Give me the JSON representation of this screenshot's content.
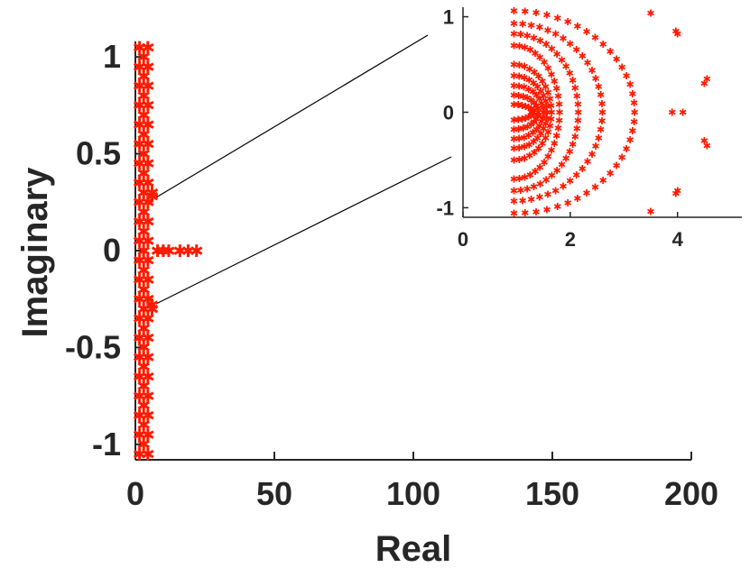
{
  "chart_data": [
    {
      "id": "main",
      "type": "scatter",
      "title": "",
      "xlabel": "Real",
      "ylabel": "Imaginary",
      "xlim": [
        0,
        200
      ],
      "ylim": [
        -1.08,
        1.08
      ],
      "xticks": [
        0,
        50,
        100,
        150,
        200
      ],
      "xtick_labels": [
        "0",
        "50",
        "100",
        "150",
        "200"
      ],
      "yticks": [
        -1,
        -0.5,
        0,
        0.5,
        1
      ],
      "ytick_labels": [
        "-1",
        "-0.5",
        "0",
        "0.5",
        "1"
      ],
      "grid": false,
      "marker": "*",
      "color": "#ff1a00",
      "points": [
        [
          1.5,
          -1.05
        ],
        [
          1.5,
          -0.95
        ],
        [
          1.5,
          -0.85
        ],
        [
          1.5,
          -0.75
        ],
        [
          1.5,
          -0.65
        ],
        [
          1.5,
          -0.55
        ],
        [
          1.5,
          -0.45
        ],
        [
          1.5,
          -0.35
        ],
        [
          1.5,
          -0.25
        ],
        [
          1.5,
          -0.15
        ],
        [
          1.5,
          -0.05
        ],
        [
          1.5,
          0.05
        ],
        [
          1.5,
          0.15
        ],
        [
          1.5,
          0.25
        ],
        [
          1.5,
          0.35
        ],
        [
          1.5,
          0.45
        ],
        [
          1.5,
          0.55
        ],
        [
          1.5,
          0.65
        ],
        [
          1.5,
          0.75
        ],
        [
          1.5,
          0.85
        ],
        [
          1.5,
          0.95
        ],
        [
          1.5,
          1.05
        ],
        [
          3,
          -1.0
        ],
        [
          3,
          -0.9
        ],
        [
          3,
          -0.8
        ],
        [
          3,
          -0.7
        ],
        [
          3,
          -0.6
        ],
        [
          3,
          -0.5
        ],
        [
          3,
          -0.4
        ],
        [
          3,
          -0.3
        ],
        [
          3,
          -0.2
        ],
        [
          3,
          -0.1
        ],
        [
          3,
          0
        ],
        [
          3,
          0.1
        ],
        [
          3,
          0.2
        ],
        [
          3,
          0.3
        ],
        [
          3,
          0.4
        ],
        [
          3,
          0.5
        ],
        [
          3,
          0.6
        ],
        [
          3,
          0.7
        ],
        [
          3,
          0.8
        ],
        [
          3,
          0.9
        ],
        [
          3,
          1.0
        ],
        [
          4.5,
          -1.05
        ],
        [
          4.5,
          -0.95
        ],
        [
          4.5,
          -0.85
        ],
        [
          4.5,
          -0.75
        ],
        [
          4.5,
          -0.65
        ],
        [
          4.5,
          -0.55
        ],
        [
          4.5,
          -0.45
        ],
        [
          4.5,
          -0.35
        ],
        [
          4.5,
          -0.25
        ],
        [
          4.5,
          -0.15
        ],
        [
          4.5,
          -0.05
        ],
        [
          4.5,
          0.05
        ],
        [
          4.5,
          0.15
        ],
        [
          4.5,
          0.25
        ],
        [
          4.5,
          0.35
        ],
        [
          4.5,
          0.45
        ],
        [
          4.5,
          0.55
        ],
        [
          4.5,
          0.65
        ],
        [
          4.5,
          0.75
        ],
        [
          4.5,
          0.85
        ],
        [
          4.5,
          0.95
        ],
        [
          4.5,
          1.05
        ],
        [
          6,
          -0.3
        ],
        [
          6,
          -0.28
        ],
        [
          6,
          0.28
        ],
        [
          6,
          0.3
        ],
        [
          8,
          0
        ],
        [
          10,
          0
        ],
        [
          12,
          0
        ],
        [
          16,
          0
        ],
        [
          19,
          0
        ],
        [
          22,
          0
        ]
      ]
    },
    {
      "id": "inset",
      "type": "scatter",
      "title": "",
      "xlabel": "",
      "ylabel": "",
      "xlim": [
        0,
        5.2
      ],
      "ylim": [
        -1.1,
        1.1
      ],
      "xticks": [
        0,
        2,
        4
      ],
      "xtick_labels": [
        "0",
        "2",
        "4"
      ],
      "yticks": [
        -1,
        0,
        1
      ],
      "ytick_labels": [
        "-1",
        "0",
        "1"
      ],
      "grid": false,
      "marker": "*",
      "color": "#ff1a00",
      "arcs": [
        {
          "x0": 0.95,
          "a": 0.35,
          "b": 0.08,
          "n": 14
        },
        {
          "x0": 0.95,
          "a": 0.45,
          "b": 0.18,
          "n": 16
        },
        {
          "x0": 0.95,
          "a": 0.55,
          "b": 0.28,
          "n": 18
        },
        {
          "x0": 0.95,
          "a": 0.62,
          "b": 0.38,
          "n": 20
        },
        {
          "x0": 0.95,
          "a": 0.7,
          "b": 0.5,
          "n": 22
        },
        {
          "x0": 0.95,
          "a": 0.85,
          "b": 0.7,
          "n": 26
        },
        {
          "x0": 0.95,
          "a": 1.2,
          "b": 0.82,
          "n": 30
        },
        {
          "x0": 0.95,
          "a": 1.65,
          "b": 0.93,
          "n": 32
        },
        {
          "x0": 0.95,
          "a": 2.25,
          "b": 1.06,
          "n": 34
        }
      ],
      "points": [
        [
          3.5,
          1.04
        ],
        [
          3.5,
          -1.04
        ],
        [
          3.97,
          0.85
        ],
        [
          4.0,
          0.82
        ],
        [
          3.97,
          -0.85
        ],
        [
          4.0,
          -0.82
        ],
        [
          4.5,
          0.3
        ],
        [
          4.55,
          0.35
        ],
        [
          4.5,
          -0.3
        ],
        [
          4.55,
          -0.35
        ],
        [
          3.9,
          0
        ],
        [
          4.1,
          0
        ]
      ]
    }
  ]
}
